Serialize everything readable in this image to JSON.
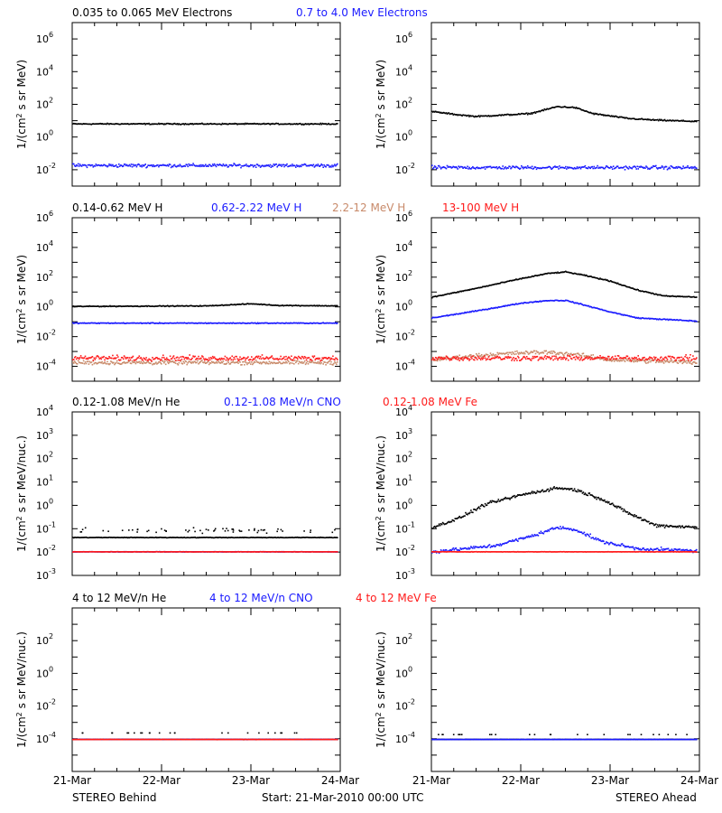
{
  "colors": {
    "black": "#000000",
    "blue": "#1a1aff",
    "tan": "#c88a6a",
    "red": "#ff1a1a",
    "background": "#ffffff"
  },
  "footer": {
    "left": "STEREO Behind",
    "center": "Start: 21-Mar-2010 00:00 UTC",
    "right": "STEREO Ahead"
  },
  "chart_data": [
    {
      "type": "scatter",
      "panel": "row1-behind",
      "xlim": [
        "21-Mar-2010",
        "24-Mar-2010"
      ],
      "ylim": [
        0.001,
        10000000
      ],
      "yscale": "log",
      "ylabel_pre": "1/(cm",
      "ylabel_sup": "2",
      "ylabel_post": " s sr MeV)",
      "ytick_labels": [
        {
          "base": "10",
          "exp": "-2",
          "value": 0.01
        },
        {
          "base": "10",
          "exp": "0",
          "value": 1
        },
        {
          "base": "10",
          "exp": "2",
          "value": 100
        },
        {
          "base": "10",
          "exp": "4",
          "value": 10000
        },
        {
          "base": "10",
          "exp": "6",
          "value": 1000000
        }
      ],
      "series": [
        {
          "name": "0.035 to 0.065 MeV Electrons",
          "color": "black",
          "level": 7,
          "spread": 0.05,
          "profile": []
        },
        {
          "name": "0.7 to 4.0 Mev Electrons",
          "color": "blue",
          "level": 0.02,
          "spread": 0.15,
          "profile": []
        }
      ]
    },
    {
      "type": "scatter",
      "panel": "row1-ahead",
      "xlim": [
        "21-Mar-2010",
        "24-Mar-2010"
      ],
      "ylim": [
        0.001,
        10000000
      ],
      "yscale": "log",
      "ylabel_pre": "1/(cm",
      "ylabel_sup": "2",
      "ylabel_post": " s sr MeV)",
      "ytick_labels": [
        {
          "base": "10",
          "exp": "-2",
          "value": 0.01
        },
        {
          "base": "10",
          "exp": "0",
          "value": 1
        },
        {
          "base": "10",
          "exp": "2",
          "value": 100
        },
        {
          "base": "10",
          "exp": "4",
          "value": 10000
        },
        {
          "base": "10",
          "exp": "6",
          "value": 1000000
        }
      ],
      "series": [
        {
          "name": "",
          "color": "black",
          "level": 40,
          "spread": 0.06,
          "profile": [
            [
              0,
              40
            ],
            [
              0.3,
              25
            ],
            [
              0.5,
              20
            ],
            [
              1.1,
              30
            ],
            [
              1.4,
              80
            ],
            [
              1.6,
              70
            ],
            [
              1.8,
              30
            ],
            [
              2.2,
              15
            ],
            [
              2.5,
              12
            ],
            [
              2.95,
              10
            ]
          ]
        },
        {
          "name": "",
          "color": "blue",
          "level": 0.015,
          "spread": 0.15,
          "profile": []
        }
      ]
    },
    {
      "type": "scatter",
      "panel": "row2-behind",
      "xlim": [
        "21-Mar-2010",
        "24-Mar-2010"
      ],
      "ylim": [
        1e-05,
        1000000
      ],
      "yscale": "log",
      "ylabel_pre": "1/(cm",
      "ylabel_sup": "2",
      "ylabel_post": " s sr MeV)",
      "ytick_labels": [
        {
          "base": "10",
          "exp": "-4",
          "value": 0.0001
        },
        {
          "base": "10",
          "exp": "-2",
          "value": 0.01
        },
        {
          "base": "10",
          "exp": "0",
          "value": 1
        },
        {
          "base": "10",
          "exp": "2",
          "value": 100
        },
        {
          "base": "10",
          "exp": "4",
          "value": 10000
        },
        {
          "base": "10",
          "exp": "6",
          "value": 1000000
        }
      ],
      "series": [
        {
          "name": "0.14-0.62 MeV H",
          "color": "black",
          "level": 1.2,
          "spread": 0.04,
          "profile": [
            [
              0,
              1.2
            ],
            [
              1.5,
              1.3
            ],
            [
              2.0,
              1.8
            ],
            [
              2.3,
              1.4
            ],
            [
              3,
              1.3
            ]
          ]
        },
        {
          "name": "0.62-2.22 MeV H",
          "color": "blue",
          "level": 0.09,
          "spread": 0.04,
          "profile": []
        },
        {
          "name": "2.2-12 MeV H",
          "color": "tan",
          "level": 0.0002,
          "spread": 0.2,
          "profile": []
        },
        {
          "name": "13-100 MeV H",
          "color": "red",
          "level": 0.0004,
          "spread": 0.25,
          "profile": []
        }
      ]
    },
    {
      "type": "scatter",
      "panel": "row2-ahead",
      "xlim": [
        "21-Mar-2010",
        "24-Mar-2010"
      ],
      "ylim": [
        1e-05,
        1000000
      ],
      "yscale": "log",
      "ylabel_pre": "1/(cm",
      "ylabel_sup": "2",
      "ylabel_post": " s sr MeV)",
      "ytick_labels": [
        {
          "base": "10",
          "exp": "-4",
          "value": 0.0001
        },
        {
          "base": "10",
          "exp": "-2",
          "value": 0.01
        },
        {
          "base": "10",
          "exp": "0",
          "value": 1
        },
        {
          "base": "10",
          "exp": "2",
          "value": 100
        },
        {
          "base": "10",
          "exp": "4",
          "value": 10000
        },
        {
          "base": "10",
          "exp": "6",
          "value": 1000000
        }
      ],
      "series": [
        {
          "name": "",
          "color": "black",
          "level": 5,
          "spread": 0.05,
          "profile": [
            [
              0,
              5
            ],
            [
              0.5,
              20
            ],
            [
              1.0,
              90
            ],
            [
              1.3,
              200
            ],
            [
              1.5,
              250
            ],
            [
              1.7,
              150
            ],
            [
              2.0,
              60
            ],
            [
              2.3,
              15
            ],
            [
              2.6,
              6
            ],
            [
              3,
              5
            ]
          ]
        },
        {
          "name": "",
          "color": "blue",
          "level": 0.2,
          "spread": 0.05,
          "profile": [
            [
              0,
              0.2
            ],
            [
              0.5,
              0.6
            ],
            [
              1.0,
              2
            ],
            [
              1.3,
              3
            ],
            [
              1.5,
              3
            ],
            [
              1.7,
              1.5
            ],
            [
              2.0,
              0.5
            ],
            [
              2.3,
              0.2
            ],
            [
              3,
              0.12
            ]
          ]
        },
        {
          "name": "",
          "color": "tan",
          "level": 0.0003,
          "spread": 0.2,
          "profile": [
            [
              0,
              0.0003
            ],
            [
              0.5,
              0.0006
            ],
            [
              1.0,
              0.0009
            ],
            [
              1.3,
              0.001
            ],
            [
              1.6,
              0.0007
            ],
            [
              2.0,
              0.0003
            ],
            [
              3,
              0.0002
            ]
          ]
        },
        {
          "name": "",
          "color": "red",
          "level": 0.0004,
          "spread": 0.25,
          "profile": []
        }
      ]
    },
    {
      "type": "scatter",
      "panel": "row3-behind",
      "xlim": [
        "21-Mar-2010",
        "24-Mar-2010"
      ],
      "ylim": [
        0.001,
        10000
      ],
      "yscale": "log",
      "ylabel_pre": "1/(cm",
      "ylabel_sup": "2",
      "ylabel_post": " s sr MeV/nuc.)",
      "ytick_labels": [
        {
          "base": "10",
          "exp": "-3",
          "value": 0.001
        },
        {
          "base": "10",
          "exp": "-2",
          "value": 0.01
        },
        {
          "base": "10",
          "exp": "-1",
          "value": 0.1
        },
        {
          "base": "10",
          "exp": "0",
          "value": 1
        },
        {
          "base": "10",
          "exp": "1",
          "value": 10
        },
        {
          "base": "10",
          "exp": "2",
          "value": 100
        },
        {
          "base": "10",
          "exp": "3",
          "value": 1000
        },
        {
          "base": "10",
          "exp": "4",
          "value": 10000
        }
      ],
      "series": [
        {
          "name": "0.12-1.08 MeV/n He",
          "color": "black",
          "level": 0.045,
          "spread": 0.02,
          "profile": [],
          "upper": 0.09
        },
        {
          "name": "0.12-1.08 MeV/n CNO",
          "color": "blue",
          "level": 0.011,
          "spread": 0.01,
          "profile": []
        },
        {
          "name": "0.12-1.08 MeV Fe",
          "color": "red",
          "level": 0.011,
          "spread": 0.01,
          "profile": []
        }
      ]
    },
    {
      "type": "scatter",
      "panel": "row3-ahead",
      "xlim": [
        "21-Mar-2010",
        "24-Mar-2010"
      ],
      "ylim": [
        0.001,
        10000
      ],
      "yscale": "log",
      "ylabel_pre": "1/(cm",
      "ylabel_sup": "2",
      "ylabel_post": " s sr MeV/nuc.)",
      "ytick_labels": [
        {
          "base": "10",
          "exp": "-3",
          "value": 0.001
        },
        {
          "base": "10",
          "exp": "-2",
          "value": 0.01
        },
        {
          "base": "10",
          "exp": "-1",
          "value": 0.1
        },
        {
          "base": "10",
          "exp": "0",
          "value": 1
        },
        {
          "base": "10",
          "exp": "1",
          "value": 10
        },
        {
          "base": "10",
          "exp": "2",
          "value": 100
        },
        {
          "base": "10",
          "exp": "3",
          "value": 1000
        },
        {
          "base": "10",
          "exp": "4",
          "value": 10000
        }
      ],
      "series": [
        {
          "name": "",
          "color": "black",
          "level": 0.1,
          "spread": 0.1,
          "profile": [
            [
              0,
              0.12
            ],
            [
              0.3,
              0.3
            ],
            [
              0.6,
              1.2
            ],
            [
              1.0,
              3
            ],
            [
              1.4,
              6
            ],
            [
              1.6,
              5
            ],
            [
              1.9,
              2
            ],
            [
              2.2,
              0.5
            ],
            [
              2.5,
              0.15
            ],
            [
              3,
              0.12
            ]
          ]
        },
        {
          "name": "",
          "color": "blue",
          "level": 0.015,
          "spread": 0.1,
          "profile": [
            [
              0,
              0.011
            ],
            [
              0.7,
              0.02
            ],
            [
              1.1,
              0.05
            ],
            [
              1.4,
              0.12
            ],
            [
              1.6,
              0.1
            ],
            [
              1.9,
              0.03
            ],
            [
              2.3,
              0.015
            ],
            [
              3,
              0.012
            ]
          ]
        },
        {
          "name": "",
          "color": "red",
          "level": 0.011,
          "spread": 0.01,
          "profile": []
        }
      ]
    },
    {
      "type": "scatter",
      "panel": "row4-behind",
      "xlim": [
        "21-Mar-2010",
        "24-Mar-2010"
      ],
      "ylim": [
        1e-06,
        10000
      ],
      "yscale": "log",
      "ylabel_pre": "1/(cm",
      "ylabel_sup": "2",
      "ylabel_post": " s sr MeV/nuc.)",
      "ytick_labels": [
        {
          "base": "10",
          "exp": "-4",
          "value": 0.0001
        },
        {
          "base": "10",
          "exp": "-2",
          "value": 0.01
        },
        {
          "base": "10",
          "exp": "0",
          "value": 1
        },
        {
          "base": "10",
          "exp": "2",
          "value": 100
        }
      ],
      "series": [
        {
          "name": "4 to 12 MeV/n He",
          "color": "black",
          "level": 0.0001,
          "spread": 0.01,
          "profile": [],
          "sparse": 0.00025
        },
        {
          "name": "4 to 12 MeV/n CNO",
          "color": "blue",
          "level": 0.0001,
          "spread": 0.01,
          "profile": []
        },
        {
          "name": "4 to 12 MeV Fe",
          "color": "red",
          "level": 0.0001,
          "spread": 0.01,
          "profile": []
        }
      ]
    },
    {
      "type": "scatter",
      "panel": "row4-ahead",
      "xlim": [
        "21-Mar-2010",
        "24-Mar-2010"
      ],
      "ylim": [
        1e-06,
        10000
      ],
      "yscale": "log",
      "ylabel_pre": "1/(cm",
      "ylabel_sup": "2",
      "ylabel_post": " s sr MeV/nuc.)",
      "ytick_labels": [
        {
          "base": "10",
          "exp": "-4",
          "value": 0.0001
        },
        {
          "base": "10",
          "exp": "-2",
          "value": 0.01
        },
        {
          "base": "10",
          "exp": "0",
          "value": 1
        },
        {
          "base": "10",
          "exp": "2",
          "value": 100
        }
      ],
      "series": [
        {
          "name": "",
          "color": "black",
          "level": 0.0001,
          "spread": 0.01,
          "profile": [],
          "sparse": 0.0002
        },
        {
          "name": "",
          "color": "blue",
          "level": 0.0001,
          "spread": 0.01,
          "profile": []
        }
      ]
    }
  ],
  "xtick_labels": [
    "21-Mar",
    "22-Mar",
    "23-Mar",
    "24-Mar"
  ]
}
